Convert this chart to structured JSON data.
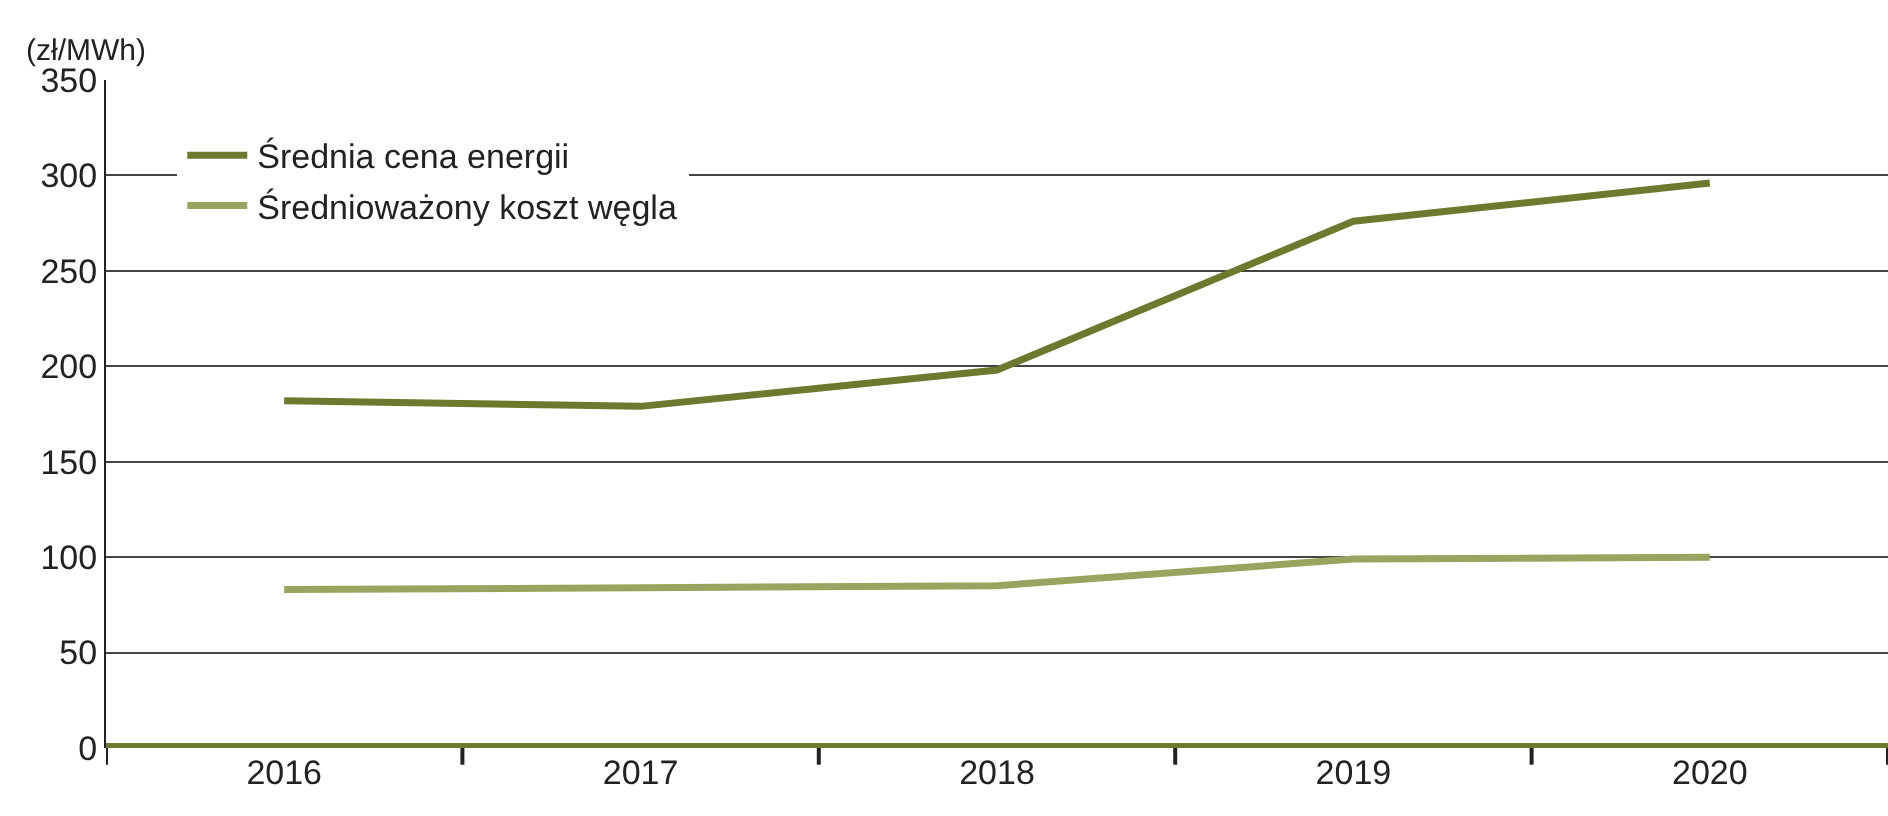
{
  "chart_data": {
    "type": "line",
    "ylabel": "(zł/MWh)",
    "categories": [
      "2016",
      "2017",
      "2018",
      "2019",
      "2020"
    ],
    "series": [
      {
        "name": "Średnia cena energii",
        "color": "#6b7a2e",
        "values": [
          182,
          179,
          198,
          276,
          296
        ]
      },
      {
        "name": "Średnioważony koszt węgla",
        "color": "#9ba360",
        "values": [
          83,
          84,
          85,
          99,
          100
        ]
      }
    ],
    "ylim": [
      0,
      350
    ],
    "yticks": [
      0,
      50,
      100,
      150,
      200,
      250,
      300,
      350
    ],
    "grid": "y",
    "legend": "top left",
    "marker": "none",
    "line_style": "solid"
  }
}
